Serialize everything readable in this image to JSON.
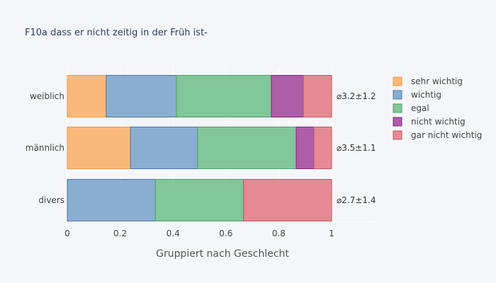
{
  "chart_data": {
    "type": "bar",
    "orientation": "horizontal",
    "stacked": "normalized",
    "title": "F10a dass er nicht zeitig in der Früh ist-",
    "xlabel": "Gruppiert nach Geschlecht",
    "xlim": [
      0,
      1
    ],
    "xticks": [
      "0",
      "0.2",
      "0.4",
      "0.6",
      "0.8",
      "1"
    ],
    "categories": [
      "weiblich",
      "männlich",
      "divers"
    ],
    "averages": [
      "⌀3.2±1.2",
      "⌀3.5±1.1",
      "⌀2.7±1.4"
    ],
    "legend_position": "right",
    "series": [
      {
        "name": "sehr wichtig",
        "color": "#fbb26b",
        "edge": "#e89b4f",
        "values": [
          0.147,
          0.239,
          0.0
        ]
      },
      {
        "name": "wichtig",
        "color": "#7ea6cc",
        "edge": "#4a78a8",
        "values": [
          0.266,
          0.254,
          0.333
        ]
      },
      {
        "name": "egal",
        "color": "#76c28f",
        "edge": "#4fa06a",
        "values": [
          0.359,
          0.373,
          0.334
        ]
      },
      {
        "name": "nicht wichtig",
        "color": "#a64d9e",
        "edge": "#7c2b77",
        "values": [
          0.121,
          0.067,
          0.0
        ]
      },
      {
        "name": "gar nicht wichtig",
        "color": "#e37e8a",
        "edge": "#c25563",
        "values": [
          0.107,
          0.067,
          0.333
        ]
      }
    ]
  }
}
